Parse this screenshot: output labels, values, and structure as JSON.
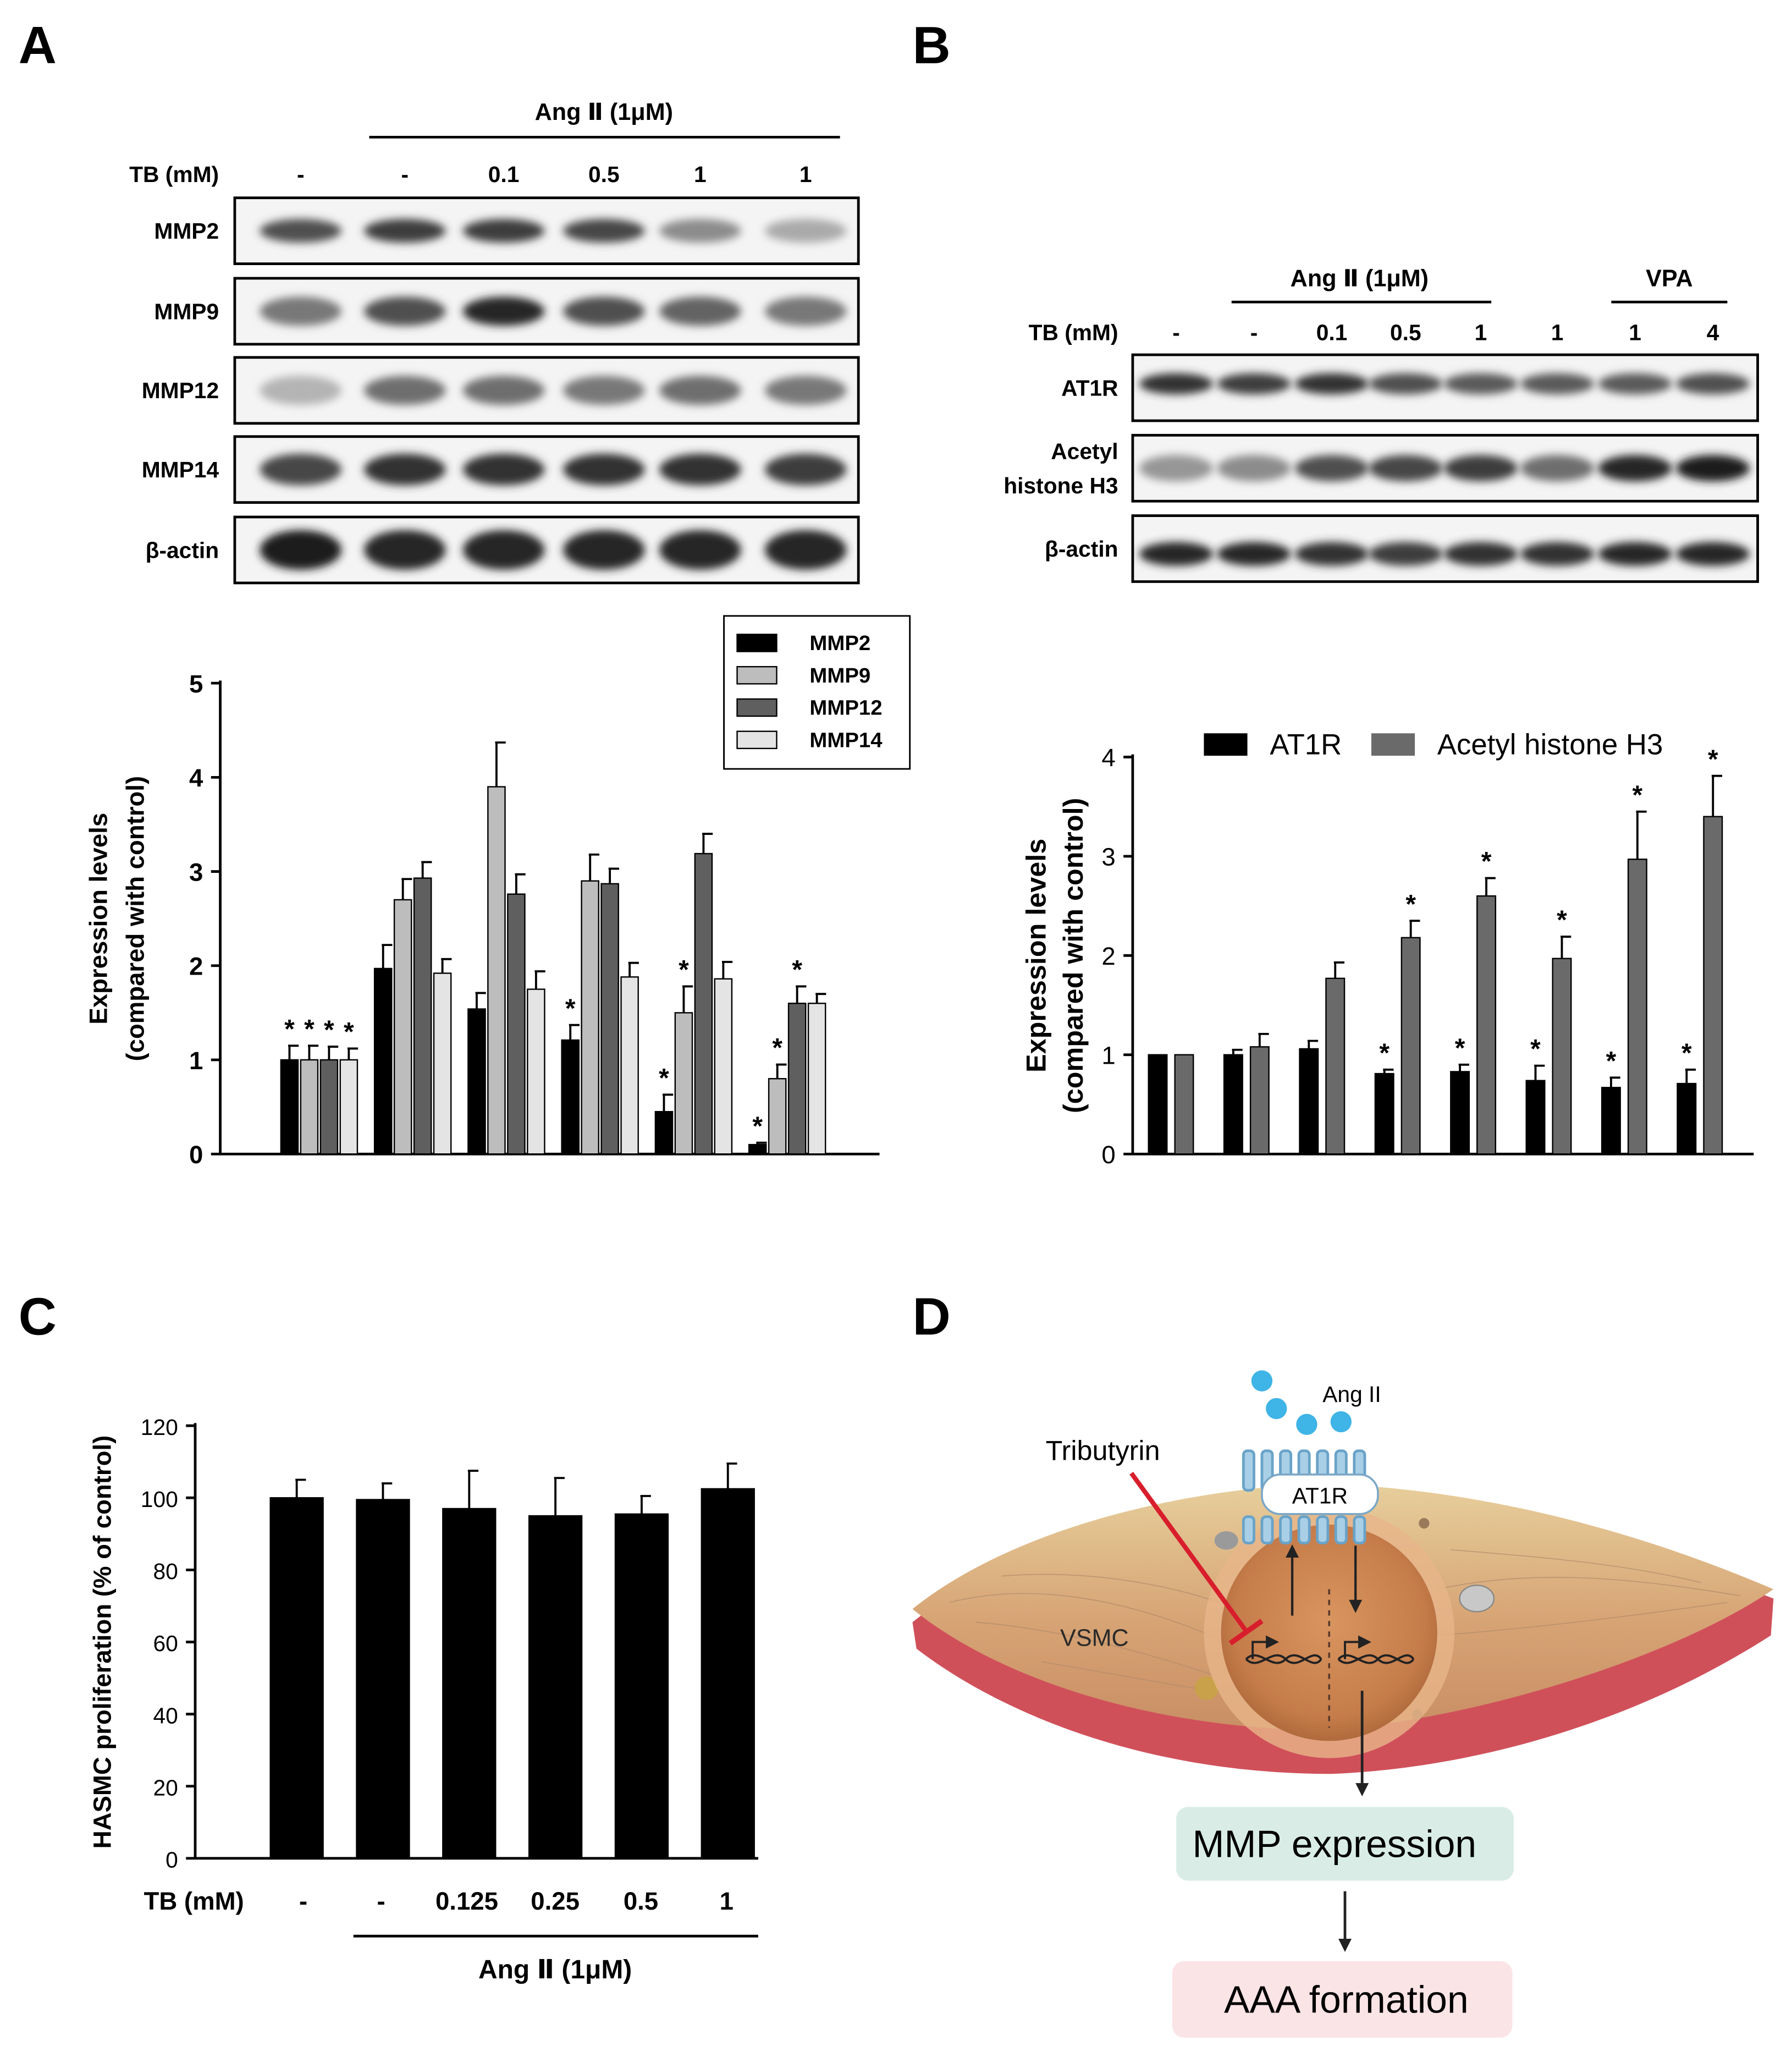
{
  "panels": {
    "a": "A",
    "b": "B",
    "c": "C",
    "d": "D"
  },
  "panel_a": {
    "treatment_label": "Ang Ⅱ (1μM)",
    "tb_label": "TB (mM)",
    "tb_values": [
      "-",
      "-",
      "0.1",
      "0.5",
      "1",
      "1"
    ],
    "blots": [
      "MMP2",
      "MMP9",
      "MMP12",
      "MMP14",
      "β-actin"
    ],
    "band_intensity": [
      [
        0.75,
        0.85,
        0.85,
        0.8,
        0.45,
        0.3
      ],
      [
        0.55,
        0.75,
        0.95,
        0.75,
        0.65,
        0.55
      ],
      [
        0.25,
        0.6,
        0.6,
        0.55,
        0.6,
        0.55
      ],
      [
        0.8,
        0.9,
        0.9,
        0.9,
        0.9,
        0.85
      ],
      [
        1.0,
        0.95,
        0.95,
        0.95,
        0.95,
        0.95
      ]
    ]
  },
  "panel_b": {
    "treatment_label": "Ang Ⅱ (1μM)",
    "vpa_label": "VPA",
    "tb_label": "TB (mM)",
    "tb_values": [
      "-",
      "-",
      "0.1",
      "0.5",
      "1",
      "1",
      "1",
      "4"
    ],
    "blots": [
      "AT1R",
      "Acetyl\nhistone H3",
      "β-actin"
    ],
    "blot_lines": [
      [
        "AT1R"
      ],
      [
        "Acetyl",
        "histone H3"
      ],
      [
        "β-actin"
      ]
    ],
    "band_intensity": [
      [
        0.9,
        0.85,
        0.9,
        0.75,
        0.7,
        0.7,
        0.7,
        0.75
      ],
      [
        0.4,
        0.45,
        0.75,
        0.8,
        0.85,
        0.6,
        0.95,
        1.0
      ],
      [
        0.95,
        0.95,
        0.9,
        0.85,
        0.9,
        0.9,
        0.95,
        0.95
      ]
    ]
  },
  "panel_c": {
    "tb_label": "TB (mM)",
    "tb_values": [
      "-",
      "-",
      "0.125",
      "0.25",
      "0.5",
      "1"
    ],
    "treatment_label": "Ang Ⅱ (1μM)"
  },
  "panel_d": {
    "ligand": "Ang II",
    "receptor": "AT1R",
    "drug": "Tributyrin",
    "cell": "VSMC",
    "box1": "MMP expression",
    "box2": "AAA formation"
  },
  "chart_data": [
    {
      "panel": "A",
      "type": "bar",
      "ylabel": "Expression levels\n(compared with control)",
      "ylabel_lines": [
        "Expression levels",
        "(compared with control)"
      ],
      "ylim": [
        0,
        5
      ],
      "yticks": [
        0,
        1,
        2,
        3,
        4,
        5
      ],
      "legend_position": "top-right",
      "groups": 6,
      "series": [
        {
          "name": "MMP2",
          "color": "#000000",
          "values": [
            1.0,
            1.97,
            1.54,
            1.21,
            0.45,
            0.1
          ],
          "errors": [
            0.15,
            0.25,
            0.17,
            0.16,
            0.18,
            0.02
          ],
          "stars": [
            true,
            false,
            false,
            true,
            true,
            true
          ]
        },
        {
          "name": "MMP9",
          "color": "#bdbdbd",
          "values": [
            1.0,
            2.7,
            3.9,
            2.9,
            1.5,
            0.8
          ],
          "errors": [
            0.15,
            0.22,
            0.47,
            0.28,
            0.28,
            0.15
          ],
          "stars": [
            true,
            false,
            false,
            false,
            true,
            true
          ]
        },
        {
          "name": "MMP12",
          "color": "#5f5f5f",
          "values": [
            1.0,
            2.93,
            2.76,
            2.87,
            3.19,
            1.6
          ],
          "errors": [
            0.14,
            0.17,
            0.21,
            0.16,
            0.21,
            0.18
          ],
          "stars": [
            true,
            false,
            false,
            false,
            false,
            true
          ]
        },
        {
          "name": "MMP14",
          "color": "#e4e4e4",
          "values": [
            1.0,
            1.92,
            1.75,
            1.88,
            1.86,
            1.6
          ],
          "errors": [
            0.12,
            0.15,
            0.19,
            0.15,
            0.18,
            0.1
          ],
          "stars": [
            true,
            false,
            false,
            false,
            false,
            false
          ]
        }
      ]
    },
    {
      "panel": "B",
      "type": "bar",
      "ylabel": "Expression levels\n(compared with control)",
      "ylabel_lines": [
        "Expression levels",
        "(compared with control)"
      ],
      "ylim": [
        0,
        4
      ],
      "yticks": [
        0,
        1,
        2,
        3,
        4
      ],
      "legend_position": "top",
      "groups": 8,
      "series": [
        {
          "name": "AT1R",
          "color": "#000000",
          "values": [
            1.0,
            1.0,
            1.06,
            0.81,
            0.83,
            0.74,
            0.67,
            0.71
          ],
          "errors": [
            0,
            0.05,
            0.08,
            0.04,
            0.07,
            0.15,
            0.1,
            0.14
          ],
          "stars": [
            false,
            false,
            false,
            true,
            true,
            true,
            true,
            true
          ]
        },
        {
          "name": "Acetyl histone H3",
          "color": "#6a6a6a",
          "values": [
            1.0,
            1.08,
            1.77,
            2.18,
            2.6,
            1.97,
            2.97,
            3.4
          ],
          "errors": [
            0,
            0.13,
            0.16,
            0.17,
            0.18,
            0.22,
            0.48,
            0.41
          ],
          "stars": [
            false,
            false,
            false,
            true,
            true,
            true,
            true,
            true
          ]
        }
      ]
    },
    {
      "panel": "C",
      "type": "bar",
      "ylabel": "HASMC proliferation (% of control)",
      "ylim": [
        0,
        120
      ],
      "yticks": [
        0,
        20,
        40,
        60,
        80,
        100,
        120
      ],
      "groups": 6,
      "series": [
        {
          "color": "#000000",
          "values": [
            100,
            99.5,
            97,
            95,
            95.5,
            102.5
          ],
          "errors": [
            5,
            4.5,
            10.5,
            10.5,
            5,
            7
          ]
        }
      ]
    }
  ]
}
